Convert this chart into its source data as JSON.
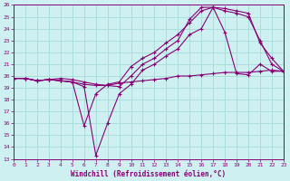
{
  "xlabel": "Windchill (Refroidissement éolien,°C)",
  "background_color": "#cef0f0",
  "grid_color": "#aadddd",
  "line_color": "#880077",
  "xmin": 0,
  "xmax": 23,
  "ymin": 13,
  "ymax": 26,
  "lines": [
    {
      "x": [
        0,
        1,
        2,
        3,
        4,
        5,
        6,
        7,
        8,
        9,
        10,
        11,
        12,
        13,
        14,
        15,
        16,
        17,
        18,
        19,
        20,
        21,
        22,
        23
      ],
      "y": [
        19.8,
        19.8,
        19.6,
        19.7,
        19.6,
        19.5,
        19.1,
        13.3,
        16.0,
        18.5,
        19.3,
        20.5,
        21.0,
        21.7,
        22.3,
        23.5,
        24.0,
        25.8,
        23.7,
        20.2,
        20.1,
        21.0,
        20.4,
        20.4
      ]
    },
    {
      "x": [
        0,
        1,
        2,
        3,
        4,
        5,
        6,
        7,
        8,
        9,
        10,
        11,
        12,
        13,
        14,
        15,
        16,
        17,
        18,
        19,
        20,
        21,
        22,
        23
      ],
      "y": [
        19.8,
        19.8,
        19.6,
        19.7,
        19.6,
        19.5,
        15.8,
        18.5,
        19.3,
        19.5,
        20.8,
        21.5,
        22.0,
        22.8,
        23.5,
        24.5,
        25.5,
        25.8,
        25.5,
        25.3,
        25.0,
        23.0,
        21.0,
        20.4
      ]
    },
    {
      "x": [
        0,
        1,
        2,
        3,
        4,
        5,
        6,
        7,
        8,
        9,
        10,
        11,
        12,
        13,
        14,
        15,
        16,
        17,
        18,
        19,
        20,
        21,
        22,
        23
      ],
      "y": [
        19.8,
        19.8,
        19.6,
        19.7,
        19.8,
        19.7,
        19.5,
        19.3,
        19.2,
        19.1,
        20.0,
        21.0,
        21.5,
        22.3,
        23.0,
        24.8,
        25.8,
        25.8,
        25.7,
        25.5,
        25.3,
        22.8,
        21.5,
        20.4
      ]
    },
    {
      "x": [
        0,
        1,
        2,
        3,
        4,
        5,
        6,
        7,
        8,
        9,
        10,
        11,
        12,
        13,
        14,
        15,
        16,
        17,
        18,
        19,
        20,
        21,
        22,
        23
      ],
      "y": [
        19.8,
        19.8,
        19.6,
        19.7,
        19.6,
        19.5,
        19.3,
        19.2,
        19.2,
        19.4,
        19.5,
        19.6,
        19.7,
        19.8,
        20.0,
        20.0,
        20.1,
        20.2,
        20.3,
        20.3,
        20.3,
        20.4,
        20.5,
        20.4
      ]
    }
  ]
}
